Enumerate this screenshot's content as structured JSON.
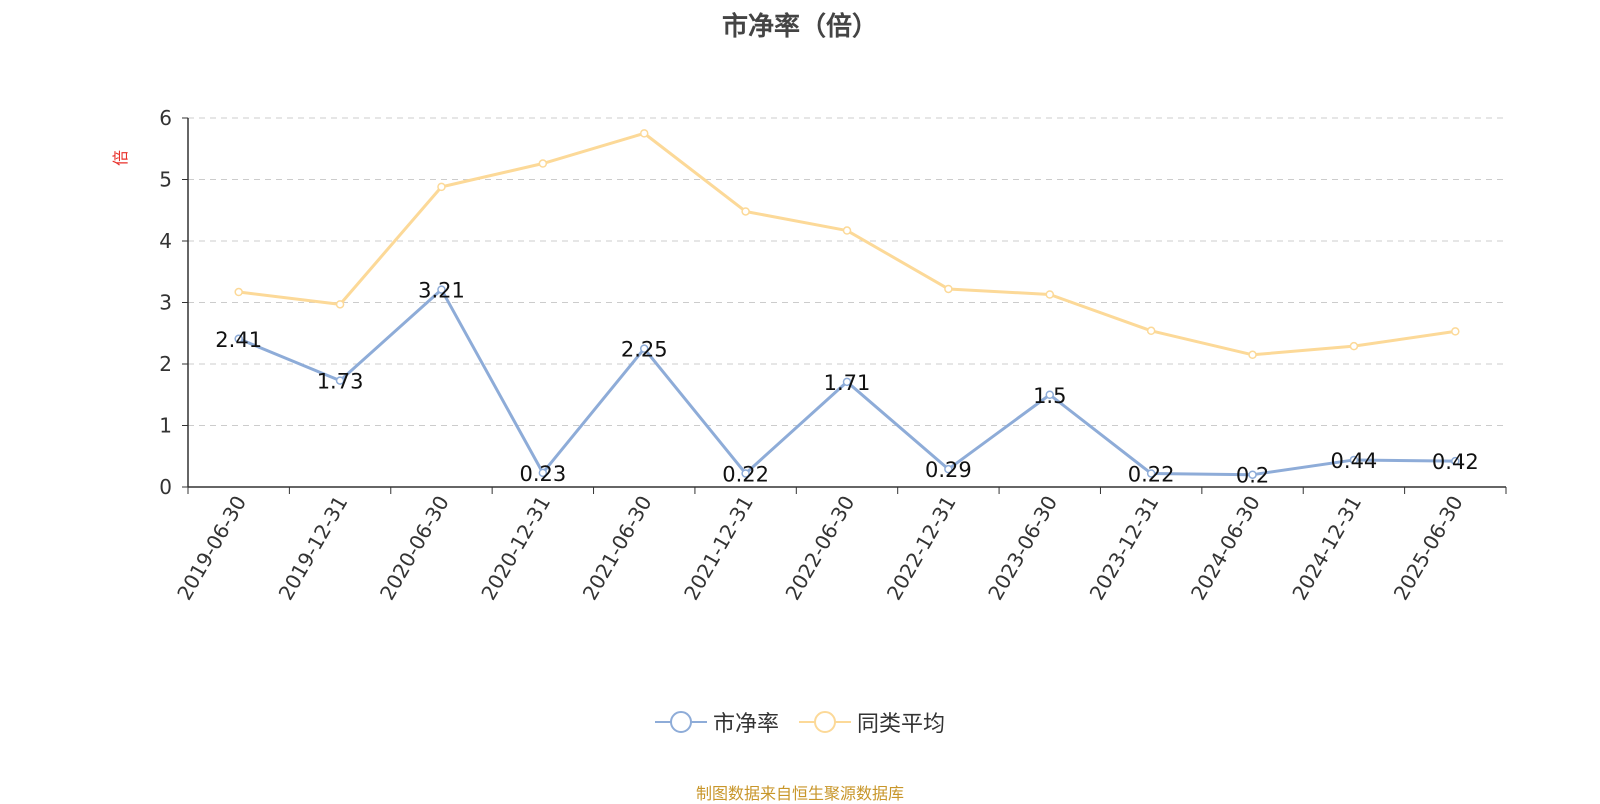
{
  "title": "市净率（倍）",
  "footer": "制图数据来自恒生聚源数据库",
  "legend": [
    {
      "name": "市净率",
      "color": "#8eacd8"
    },
    {
      "name": "同类平均",
      "color": "#fcd998"
    }
  ],
  "colors": {
    "footer": "#c8962a",
    "ylabel": "#e8302a",
    "axis": "#333333",
    "grid": "#cccccc"
  },
  "chart_data": {
    "type": "line",
    "title": "市净率（倍）",
    "ylabel": "倍",
    "xlabel": "",
    "ylim": [
      0,
      6
    ],
    "yticks": [
      0,
      1,
      2,
      3,
      4,
      5,
      6
    ],
    "grid": true,
    "legend_position": "bottom-center",
    "categories": [
      "2019-06-30",
      "2019-12-31",
      "2020-06-30",
      "2020-12-31",
      "2021-06-30",
      "2021-12-31",
      "2022-06-30",
      "2022-12-31",
      "2023-06-30",
      "2023-12-31",
      "2024-06-30",
      "2024-12-31",
      "2025-06-30"
    ],
    "series": [
      {
        "name": "市净率",
        "color": "#8eacd8",
        "show_labels": true,
        "values": [
          2.41,
          1.73,
          3.21,
          0.23,
          2.25,
          0.22,
          1.71,
          0.29,
          1.5,
          0.22,
          0.2,
          0.44,
          0.42
        ],
        "labels": [
          "2.41",
          "1.73",
          "3.21",
          "0.23",
          "2.25",
          "0.22",
          "1.71",
          "0.29",
          "1.5",
          "0.22",
          "0.2",
          "0.44",
          "0.42"
        ]
      },
      {
        "name": "同类平均",
        "color": "#fcd998",
        "show_labels": false,
        "values": [
          3.17,
          2.97,
          4.88,
          5.26,
          5.75,
          4.48,
          4.17,
          3.22,
          3.13,
          2.54,
          2.15,
          2.29,
          2.53
        ]
      }
    ]
  }
}
